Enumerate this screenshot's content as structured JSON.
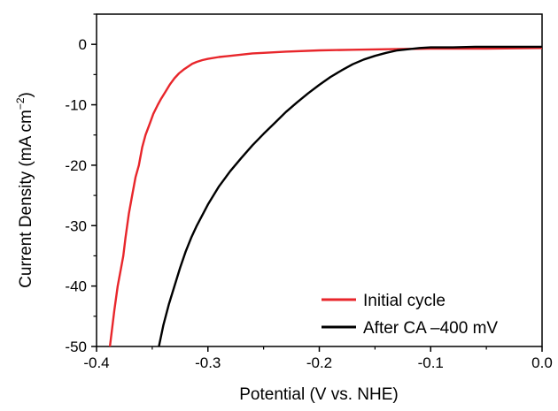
{
  "chart_data": {
    "type": "line",
    "xlabel": "Potential (V vs. NHE)",
    "ylabel_main": "Current Density (mA cm",
    "ylabel_sup": "−2",
    "ylabel_close": ")",
    "xlim": [
      -0.4,
      0.0
    ],
    "ylim": [
      -50,
      5
    ],
    "xticks": [
      -0.4,
      -0.3,
      -0.2,
      -0.1,
      0.0
    ],
    "xtick_labels": [
      "-0.4",
      "-0.3",
      "-0.2",
      "-0.1",
      "0.0"
    ],
    "yticks": [
      0,
      -10,
      -20,
      -30,
      -40,
      -50
    ],
    "ytick_labels": [
      "0",
      "-10",
      "-20",
      "-30",
      "-40",
      "-50"
    ],
    "grid": false,
    "legend_position": "bottom-right",
    "series": [
      {
        "name": "Initial cycle",
        "color": "#e8262b",
        "x": [
          -0.388,
          -0.386,
          -0.384,
          -0.381,
          -0.378,
          -0.376,
          -0.374,
          -0.371,
          -0.368,
          -0.365,
          -0.362,
          -0.359,
          -0.356,
          -0.352,
          -0.349,
          -0.345,
          -0.342,
          -0.338,
          -0.334,
          -0.33,
          -0.326,
          -0.322,
          -0.318,
          -0.314,
          -0.31,
          -0.305,
          -0.3,
          -0.29,
          -0.28,
          -0.27,
          -0.26,
          -0.25,
          -0.23,
          -0.2,
          -0.17,
          -0.14,
          -0.1,
          -0.05,
          0.0
        ],
        "y": [
          -50.0,
          -47.0,
          -44.0,
          -40.0,
          -37.0,
          -35.0,
          -32.0,
          -28.0,
          -25.0,
          -22.0,
          -20.0,
          -17.0,
          -15.0,
          -13.0,
          -11.5,
          -10.0,
          -9.0,
          -7.8,
          -6.6,
          -5.6,
          -4.8,
          -4.2,
          -3.7,
          -3.2,
          -2.9,
          -2.6,
          -2.4,
          -2.1,
          -1.9,
          -1.7,
          -1.5,
          -1.4,
          -1.2,
          -1.0,
          -0.9,
          -0.8,
          -0.7,
          -0.7,
          -0.6
        ]
      },
      {
        "name": "After CA –400 mV",
        "color": "#000000",
        "x": [
          -0.344,
          -0.34,
          -0.335,
          -0.33,
          -0.325,
          -0.32,
          -0.315,
          -0.31,
          -0.3,
          -0.29,
          -0.28,
          -0.27,
          -0.26,
          -0.25,
          -0.24,
          -0.23,
          -0.22,
          -0.21,
          -0.2,
          -0.19,
          -0.18,
          -0.17,
          -0.16,
          -0.15,
          -0.14,
          -0.13,
          -0.12,
          -0.11,
          -0.1,
          -0.09,
          -0.08,
          -0.06,
          -0.04,
          -0.02,
          0.0
        ],
        "y": [
          -50.0,
          -46.5,
          -43.0,
          -40.0,
          -37.0,
          -34.3,
          -32.0,
          -30.0,
          -26.5,
          -23.5,
          -21.0,
          -18.8,
          -16.7,
          -14.8,
          -13.0,
          -11.2,
          -9.6,
          -8.1,
          -6.7,
          -5.4,
          -4.3,
          -3.3,
          -2.5,
          -1.9,
          -1.4,
          -1.0,
          -0.8,
          -0.6,
          -0.5,
          -0.5,
          -0.5,
          -0.4,
          -0.4,
          -0.4,
          -0.4
        ]
      }
    ]
  }
}
